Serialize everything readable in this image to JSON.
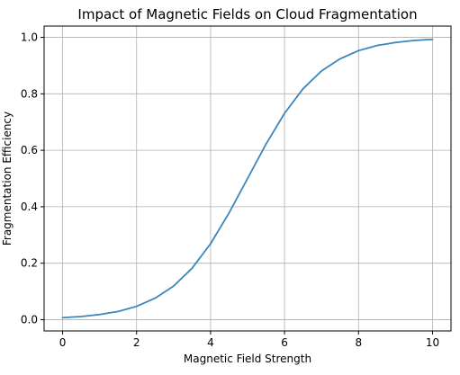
{
  "chart_data": {
    "type": "line",
    "title": "Impact of Magnetic Fields on Cloud Fragmentation",
    "xlabel": "Magnetic Field Strength",
    "ylabel": "Fragmentation Efficiency",
    "xlim": [
      -0.5,
      10.5
    ],
    "ylim": [
      -0.04,
      1.04
    ],
    "xticks": [
      0,
      2,
      4,
      6,
      8,
      10
    ],
    "xtick_labels": [
      "0",
      "2",
      "4",
      "6",
      "8",
      "10"
    ],
    "yticks": [
      0.0,
      0.2,
      0.4,
      0.6,
      0.8,
      1.0
    ],
    "ytick_labels": [
      "0.0",
      "0.2",
      "0.4",
      "0.6",
      "0.8",
      "1.0"
    ],
    "grid": true,
    "series": [
      {
        "color": "#3a86bd",
        "x": [
          0,
          0.5,
          1,
          1.5,
          2,
          2.5,
          3,
          3.5,
          4,
          4.5,
          5,
          5.5,
          6,
          6.5,
          7,
          7.5,
          8,
          8.5,
          9,
          9.5,
          10
        ],
        "y": [
          0.007,
          0.011,
          0.018,
          0.029,
          0.047,
          0.076,
          0.119,
          0.182,
          0.269,
          0.378,
          0.5,
          0.622,
          0.731,
          0.818,
          0.881,
          0.924,
          0.953,
          0.971,
          0.982,
          0.989,
          0.993
        ]
      }
    ]
  }
}
